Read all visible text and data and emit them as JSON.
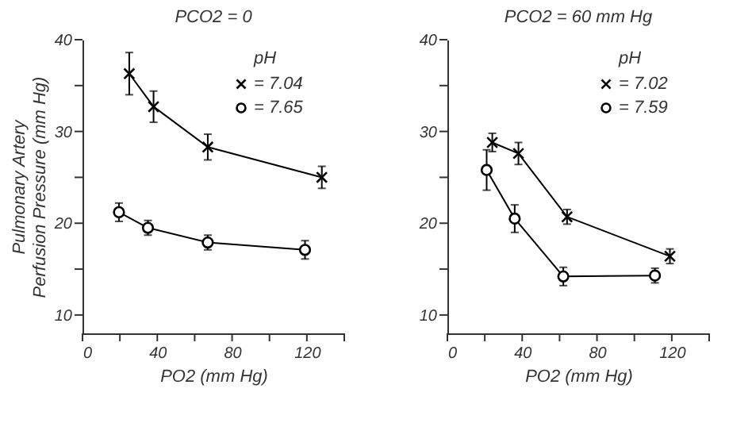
{
  "chart_data": [
    {
      "type": "line",
      "title": "PCO2 = 0",
      "xlabel": "PO2 (mm Hg)",
      "ylabel": "Pulmonary Artery\nPerfusion Pressure (mm Hg)",
      "legend_title": "pH",
      "legend": "top right",
      "grid": false,
      "xlim": [
        0,
        140
      ],
      "xticks": [
        0,
        {
          "value": 20,
          "label": null
        },
        40,
        {
          "value": 60,
          "label": null
        },
        80,
        {
          "value": 100,
          "label": null
        },
        120,
        {
          "value": 140,
          "label": null
        }
      ],
      "ylim": [
        8,
        40
      ],
      "yticks": [
        10,
        {
          "value": 15,
          "label": null
        },
        20,
        {
          "value": 25,
          "label": null
        },
        30,
        {
          "value": 35,
          "label": null
        },
        40
      ],
      "series": [
        {
          "name": "= 7.04",
          "color": "#000000",
          "marker": "cross",
          "x": [
            25,
            38,
            67,
            128
          ],
          "values": [
            36.3,
            32.7,
            28.3,
            25.0
          ],
          "errors": [
            2.3,
            1.7,
            1.4,
            1.2
          ]
        },
        {
          "name": "= 7.65",
          "color": "#000000",
          "marker": "circle",
          "x": [
            19.5,
            35,
            67,
            119
          ],
          "values": [
            21.2,
            19.5,
            17.9,
            17.1
          ],
          "errors": [
            1.0,
            0.8,
            0.8,
            1.0
          ]
        }
      ]
    },
    {
      "type": "line",
      "title": "PCO2 = 60 mm Hg",
      "xlabel": "PO2 (mm Hg)",
      "legend_title": "pH",
      "legend": "top right",
      "grid": false,
      "xlim": [
        0,
        140
      ],
      "xticks": [
        0,
        {
          "value": 20,
          "label": null
        },
        40,
        {
          "value": 60,
          "label": null
        },
        80,
        {
          "value": 100,
          "label": null
        },
        120,
        {
          "value": 140,
          "label": null
        }
      ],
      "ylim": [
        8,
        40
      ],
      "yticks": [
        10,
        {
          "value": 15,
          "label": null
        },
        20,
        {
          "value": 25,
          "label": null
        },
        30,
        {
          "value": 35,
          "label": null
        },
        40
      ],
      "series": [
        {
          "name": "= 7.02",
          "color": "#000000",
          "marker": "cross",
          "x": [
            24,
            38,
            64,
            119
          ],
          "values": [
            28.8,
            27.6,
            20.7,
            16.4
          ],
          "errors": [
            1.0,
            1.2,
            0.8,
            0.8
          ]
        },
        {
          "name": "= 7.59",
          "color": "#000000",
          "marker": "circle",
          "x": [
            21,
            36,
            62,
            111
          ],
          "values": [
            25.8,
            20.5,
            14.2,
            14.3
          ],
          "errors": [
            2.2,
            1.5,
            1.0,
            0.8
          ]
        }
      ]
    }
  ]
}
